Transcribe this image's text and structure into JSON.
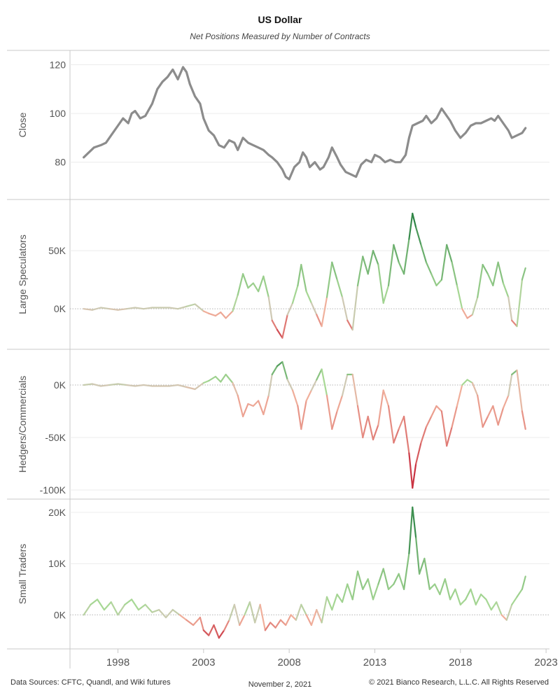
{
  "title": "US Dollar",
  "subtitle": "Net Positions Measured by Number of Contracts",
  "footer": {
    "sources": "Data Sources: CFTC, Quandl, and Wiki futures",
    "date": "November 2, 2021",
    "copyright": "© 2021 Bianco Research, L.L.C. All Rights Reserved"
  },
  "colors": {
    "close": "#8c8c8c",
    "neutral": "#cfc9b4",
    "pos_light": "#a8d895",
    "pos_dark": "#1f7a3c",
    "neg_light": "#f0b09c",
    "neg_dark": "#c0142b",
    "grid": "#ececec",
    "divider": "#c8c8c8"
  },
  "chart_data": {
    "type": "line",
    "xlim": [
      1995.2,
      2023.2
    ],
    "x_ticks": [
      "1998",
      "2003",
      "2008",
      "2013",
      "2018",
      "2023"
    ],
    "x_tick_values": [
      1998,
      2003,
      2008,
      2013,
      2018,
      2023
    ],
    "panels": [
      {
        "id": "close",
        "ylabel": "Close",
        "ylim": [
          67,
          123
        ],
        "ticks": [
          80,
          100,
          120
        ],
        "tick_labels": [
          "80",
          "100",
          "120"
        ],
        "coloring": "solid",
        "series": {
          "x": [
            1996.0,
            1996.3,
            1996.6,
            1997.0,
            1997.3,
            1997.6,
            1998.0,
            1998.3,
            1998.6,
            1998.8,
            1999.0,
            1999.3,
            1999.6,
            2000.0,
            2000.3,
            2000.6,
            2000.9,
            2001.2,
            2001.5,
            2001.8,
            2002.0,
            2002.2,
            2002.5,
            2002.8,
            2003.0,
            2003.3,
            2003.6,
            2003.9,
            2004.2,
            2004.5,
            2004.8,
            2005.0,
            2005.3,
            2005.6,
            2005.9,
            2006.2,
            2006.5,
            2006.8,
            2007.0,
            2007.3,
            2007.6,
            2007.8,
            2008.0,
            2008.3,
            2008.6,
            2008.8,
            2009.0,
            2009.2,
            2009.5,
            2009.8,
            2010.0,
            2010.3,
            2010.5,
            2010.8,
            2011.0,
            2011.3,
            2011.6,
            2011.9,
            2012.2,
            2012.5,
            2012.8,
            2013.0,
            2013.3,
            2013.6,
            2013.9,
            2014.2,
            2014.5,
            2014.8,
            2015.0,
            2015.2,
            2015.5,
            2015.8,
            2016.0,
            2016.3,
            2016.6,
            2016.9,
            2017.1,
            2017.4,
            2017.7,
            2018.0,
            2018.3,
            2018.6,
            2018.9,
            2019.2,
            2019.5,
            2019.8,
            2020.0,
            2020.2,
            2020.5,
            2020.8,
            2021.0,
            2021.3,
            2021.6,
            2021.8
          ],
          "y": [
            82,
            84,
            86,
            87,
            88,
            91,
            95,
            98,
            96,
            100,
            101,
            98,
            99,
            104,
            110,
            113,
            115,
            118,
            114,
            119,
            117,
            112,
            107,
            104,
            98,
            93,
            91,
            87,
            86,
            89,
            88,
            85,
            90,
            88,
            87,
            86,
            85,
            83,
            82,
            80,
            77,
            74,
            73,
            78,
            80,
            84,
            82,
            78,
            80,
            77,
            78,
            82,
            86,
            82,
            79,
            76,
            75,
            74,
            79,
            81,
            80,
            83,
            82,
            80,
            81,
            80,
            80,
            83,
            90,
            95,
            96,
            97,
            99,
            96,
            98,
            102,
            100,
            97,
            93,
            90,
            92,
            95,
            96,
            96,
            97,
            98,
            97,
            99,
            96,
            93,
            90,
            91,
            92,
            94
          ]
        }
      },
      {
        "id": "large",
        "ylabel": "Large Speculators",
        "ylim": [
          -30000,
          88000
        ],
        "ticks": [
          0,
          50000
        ],
        "tick_labels": [
          "0K",
          "50K"
        ],
        "coloring": "diverging",
        "pos_max": 82000,
        "neg_min": -30000,
        "series": {
          "x": [
            1996.0,
            1996.5,
            1997.0,
            1997.5,
            1998.0,
            1998.5,
            1999.0,
            1999.5,
            2000.0,
            2000.5,
            2001.0,
            2001.5,
            2002.0,
            2002.5,
            2003.0,
            2003.3,
            2003.7,
            2004.0,
            2004.3,
            2004.7,
            2005.0,
            2005.3,
            2005.6,
            2005.9,
            2006.2,
            2006.5,
            2006.8,
            2007.0,
            2007.3,
            2007.6,
            2007.9,
            2008.2,
            2008.5,
            2008.7,
            2009.0,
            2009.3,
            2009.6,
            2009.9,
            2010.2,
            2010.5,
            2010.8,
            2011.1,
            2011.4,
            2011.7,
            2012.0,
            2012.3,
            2012.6,
            2012.9,
            2013.2,
            2013.5,
            2013.8,
            2014.1,
            2014.4,
            2014.7,
            2015.0,
            2015.2,
            2015.4,
            2015.7,
            2016.0,
            2016.3,
            2016.6,
            2016.9,
            2017.2,
            2017.5,
            2017.8,
            2018.1,
            2018.4,
            2018.7,
            2019.0,
            2019.3,
            2019.6,
            2019.9,
            2020.2,
            2020.5,
            2020.8,
            2021.0,
            2021.3,
            2021.6,
            2021.8
          ],
          "y": [
            0,
            -1000,
            1000,
            0,
            -1000,
            0,
            1000,
            0,
            1000,
            1000,
            1000,
            0,
            2000,
            4000,
            -2000,
            -4000,
            -6000,
            -3000,
            -8000,
            -2000,
            12000,
            30000,
            18000,
            22000,
            15000,
            28000,
            10000,
            -10000,
            -18000,
            -25000,
            -5000,
            5000,
            20000,
            38000,
            15000,
            5000,
            -5000,
            -15000,
            10000,
            40000,
            25000,
            10000,
            -10000,
            -18000,
            20000,
            45000,
            30000,
            50000,
            38000,
            5000,
            20000,
            55000,
            40000,
            30000,
            60000,
            82000,
            70000,
            55000,
            40000,
            30000,
            20000,
            25000,
            55000,
            40000,
            20000,
            0,
            -8000,
            -5000,
            10000,
            38000,
            30000,
            20000,
            40000,
            22000,
            10000,
            -10000,
            -15000,
            25000,
            35000
          ]
        }
      },
      {
        "id": "hedgers",
        "ylabel": "Hedgers/Commercials",
        "ylim": [
          -102000,
          30000
        ],
        "ticks": [
          -100000,
          -50000,
          0
        ],
        "tick_labels": [
          "-100K",
          "-50K",
          "0K"
        ],
        "coloring": "diverging",
        "pos_max": 28000,
        "neg_min": -100000,
        "series": {
          "x": [
            1996.0,
            1996.5,
            1997.0,
            1997.5,
            1998.0,
            1998.5,
            1999.0,
            1999.5,
            2000.0,
            2000.5,
            2001.0,
            2001.5,
            2002.0,
            2002.5,
            2003.0,
            2003.3,
            2003.7,
            2004.0,
            2004.3,
            2004.7,
            2005.0,
            2005.3,
            2005.6,
            2005.9,
            2006.2,
            2006.5,
            2006.8,
            2007.0,
            2007.3,
            2007.6,
            2007.9,
            2008.2,
            2008.5,
            2008.7,
            2009.0,
            2009.3,
            2009.6,
            2009.9,
            2010.2,
            2010.5,
            2010.8,
            2011.1,
            2011.4,
            2011.7,
            2012.0,
            2012.3,
            2012.6,
            2012.9,
            2013.2,
            2013.5,
            2013.8,
            2014.1,
            2014.4,
            2014.7,
            2015.0,
            2015.2,
            2015.4,
            2015.7,
            2016.0,
            2016.3,
            2016.6,
            2016.9,
            2017.2,
            2017.5,
            2017.8,
            2018.1,
            2018.4,
            2018.7,
            2019.0,
            2019.3,
            2019.6,
            2019.9,
            2020.2,
            2020.5,
            2020.8,
            2021.0,
            2021.3,
            2021.6,
            2021.8
          ],
          "y": [
            0,
            1000,
            -1000,
            0,
            1000,
            0,
            -1000,
            0,
            -1000,
            -1000,
            -1000,
            0,
            -2000,
            -4000,
            2000,
            4000,
            8000,
            3000,
            10000,
            2000,
            -10000,
            -30000,
            -18000,
            -20000,
            -15000,
            -28000,
            -10000,
            10000,
            18000,
            22000,
            5000,
            -5000,
            -20000,
            -42000,
            -15000,
            -5000,
            5000,
            15000,
            -10000,
            -42000,
            -25000,
            -10000,
            10000,
            10000,
            -20000,
            -50000,
            -30000,
            -52000,
            -38000,
            -5000,
            -20000,
            -55000,
            -42000,
            -30000,
            -65000,
            -98000,
            -75000,
            -55000,
            -40000,
            -30000,
            -20000,
            -25000,
            -58000,
            -40000,
            -20000,
            0,
            5000,
            2000,
            -10000,
            -40000,
            -30000,
            -20000,
            -38000,
            -22000,
            -10000,
            10000,
            14000,
            -25000,
            -42000
          ]
        }
      },
      {
        "id": "small",
        "ylabel": "Small Traders",
        "ylim": [
          -5000,
          21500
        ],
        "ticks": [
          0,
          10000,
          20000
        ],
        "tick_labels": [
          "0K",
          "10K",
          "20K"
        ],
        "coloring": "diverging",
        "pos_max": 21000,
        "neg_min": -5000,
        "series": {
          "x": [
            1996.0,
            1996.4,
            1996.8,
            1997.2,
            1997.6,
            1998.0,
            1998.4,
            1998.8,
            1999.2,
            1999.6,
            2000.0,
            2000.4,
            2000.8,
            2001.2,
            2001.6,
            2002.0,
            2002.4,
            2002.8,
            2003.0,
            2003.3,
            2003.6,
            2003.9,
            2004.2,
            2004.5,
            2004.8,
            2005.1,
            2005.4,
            2005.7,
            2006.0,
            2006.3,
            2006.6,
            2006.9,
            2007.2,
            2007.5,
            2007.8,
            2008.1,
            2008.4,
            2008.7,
            2009.0,
            2009.3,
            2009.6,
            2009.9,
            2010.2,
            2010.5,
            2010.8,
            2011.1,
            2011.4,
            2011.7,
            2012.0,
            2012.3,
            2012.6,
            2012.9,
            2013.2,
            2013.5,
            2013.8,
            2014.1,
            2014.4,
            2014.7,
            2015.0,
            2015.2,
            2015.4,
            2015.6,
            2015.9,
            2016.2,
            2016.5,
            2016.8,
            2017.1,
            2017.4,
            2017.7,
            2018.0,
            2018.3,
            2018.6,
            2018.9,
            2019.2,
            2019.5,
            2019.8,
            2020.1,
            2020.4,
            2020.7,
            2021.0,
            2021.3,
            2021.6,
            2021.8
          ],
          "y": [
            0,
            2000,
            3000,
            1000,
            2500,
            0,
            2000,
            3000,
            1000,
            2000,
            500,
            1000,
            -500,
            1000,
            0,
            -1000,
            -2000,
            -500,
            -3000,
            -4000,
            -2000,
            -4500,
            -3000,
            -1000,
            2000,
            -2000,
            0,
            2500,
            -1500,
            2000,
            -3000,
            -1500,
            -2500,
            -1000,
            -2000,
            0,
            -1000,
            2000,
            0,
            -2000,
            1000,
            -1500,
            3500,
            1000,
            4000,
            2500,
            6000,
            3000,
            8500,
            5000,
            7000,
            3000,
            6000,
            9000,
            5000,
            6000,
            8000,
            5000,
            12000,
            21000,
            15000,
            8000,
            11000,
            5000,
            6000,
            4000,
            7000,
            3000,
            5000,
            2000,
            3000,
            5000,
            2000,
            4000,
            3000,
            1000,
            2500,
            0,
            -1000,
            2000,
            3500,
            5000,
            7500
          ]
        }
      }
    ]
  }
}
